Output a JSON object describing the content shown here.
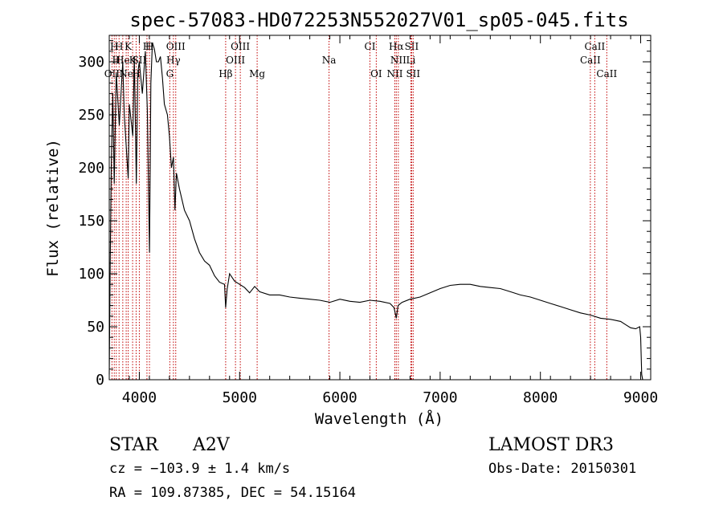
{
  "colors": {
    "background": "#ffffff",
    "axis": "#000000",
    "spectrum": "#000000",
    "line_marker": "#c00000"
  },
  "chart_data": {
    "type": "line",
    "title": "spec-57083-HD072253N552027V01_sp05-045.fits",
    "xlabel": "Wavelength (Å)",
    "ylabel": "Flux (relative)",
    "xlim": [
      3700,
      9100
    ],
    "ylim": [
      0,
      325
    ],
    "xticks": [
      4000,
      5000,
      6000,
      7000,
      8000,
      9000
    ],
    "yticks": [
      0,
      50,
      100,
      150,
      200,
      250,
      300
    ],
    "grid": false,
    "series": [
      {
        "x": [
          3700,
          3710,
          3720,
          3735,
          3750,
          3770,
          3800,
          3835,
          3850,
          3889,
          3900,
          3935,
          3950,
          3970,
          3985,
          4000,
          4030,
          4060,
          4080,
          4101,
          4115,
          4130,
          4150,
          4170,
          4190,
          4210,
          4230,
          4250,
          4280,
          4300,
          4320,
          4340,
          4355,
          4370,
          4400,
          4450,
          4500,
          4550,
          4600,
          4650,
          4700,
          4750,
          4800,
          4850,
          4861,
          4875,
          4900,
          4950,
          5000,
          5050,
          5100,
          5150,
          5200,
          5300,
          5400,
          5500,
          5600,
          5700,
          5800,
          5900,
          6000,
          6100,
          6200,
          6300,
          6400,
          6500,
          6540,
          6563,
          6580,
          6620,
          6700,
          6800,
          6900,
          7000,
          7100,
          7200,
          7300,
          7400,
          7500,
          7600,
          7700,
          7800,
          7900,
          8000,
          8100,
          8200,
          8300,
          8400,
          8500,
          8600,
          8700,
          8800,
          8850,
          8900,
          8950,
          8990,
          9000,
          9010,
          9020
        ],
        "y": [
          5,
          110,
          200,
          270,
          185,
          290,
          240,
          300,
          250,
          190,
          260,
          230,
          305,
          185,
          290,
          300,
          270,
          310,
          255,
          120,
          280,
          318,
          312,
          300,
          300,
          305,
          285,
          260,
          250,
          230,
          200,
          210,
          160,
          195,
          180,
          160,
          150,
          133,
          120,
          112,
          108,
          98,
          92,
          90,
          68,
          85,
          100,
          93,
          90,
          87,
          82,
          88,
          83,
          80,
          80,
          78,
          77,
          76,
          75,
          73,
          76,
          74,
          73,
          75,
          74,
          72,
          68,
          58,
          70,
          73,
          76,
          78,
          82,
          86,
          89,
          90,
          90,
          88,
          87,
          86,
          83,
          80,
          78,
          75,
          72,
          69,
          66,
          63,
          61,
          58,
          57,
          55,
          52,
          49,
          48,
          50,
          40,
          5,
          0
        ]
      }
    ],
    "line_markers": [
      {
        "wl": 3727,
        "label": "OII",
        "row": 3
      },
      {
        "wl": 3750,
        "label": "H",
        "row": 1
      },
      {
        "wl": 3770,
        "label": "H",
        "row": 2
      },
      {
        "wl": 3798,
        "label": "H",
        "row": 1
      },
      {
        "wl": 3835,
        "label": "He",
        "row": 2
      },
      {
        "wl": 3869,
        "label": "Ne",
        "row": 3
      },
      {
        "wl": 3889,
        "label": "K",
        "row": 1
      },
      {
        "wl": 3933,
        "label": "K",
        "row": 2
      },
      {
        "wl": 3968,
        "label": "H",
        "row": 3
      },
      {
        "wl": 4000,
        "label": "SII",
        "row": 2
      },
      {
        "wl": 4076,
        "label": "H",
        "row": 1
      },
      {
        "wl": 4101,
        "label": "H",
        "row": 1
      },
      {
        "wl": 4304,
        "label": "G",
        "row": 3
      },
      {
        "wl": 4340,
        "label": "Hγ",
        "row": 2
      },
      {
        "wl": 4363,
        "label": "OIII",
        "row": 1
      },
      {
        "wl": 4861,
        "label": "Hβ",
        "row": 3
      },
      {
        "wl": 4959,
        "label": "OIII",
        "row": 2
      },
      {
        "wl": 5007,
        "label": "OIII",
        "row": 1
      },
      {
        "wl": 5175,
        "label": "Mg",
        "row": 3
      },
      {
        "wl": 5892,
        "label": "Na",
        "row": 2
      },
      {
        "wl": 6300,
        "label": "CI",
        "row": 1
      },
      {
        "wl": 6363,
        "label": "OI",
        "row": 3
      },
      {
        "wl": 6548,
        "label": "NII",
        "row": 3
      },
      {
        "wl": 6563,
        "label": "Hα",
        "row": 1
      },
      {
        "wl": 6583,
        "label": "NII",
        "row": 2
      },
      {
        "wl": 6708,
        "label": "Li",
        "row": 2
      },
      {
        "wl": 6716,
        "label": "SII",
        "row": 1
      },
      {
        "wl": 6731,
        "label": "SII",
        "row": 3
      },
      {
        "wl": 8498,
        "label": "CaII",
        "row": 2
      },
      {
        "wl": 8542,
        "label": "CaII",
        "row": 1
      },
      {
        "wl": 8662,
        "label": "CaII",
        "row": 3
      }
    ]
  },
  "info": {
    "object_class": "STAR",
    "subclass": "A2V",
    "cz": "cz = −103.9 ± 1.4 km/s",
    "radec": "RA = 109.87385, DEC =  54.15164",
    "survey": "LAMOST DR3",
    "obs_date": "Obs-Date: 20150301"
  }
}
